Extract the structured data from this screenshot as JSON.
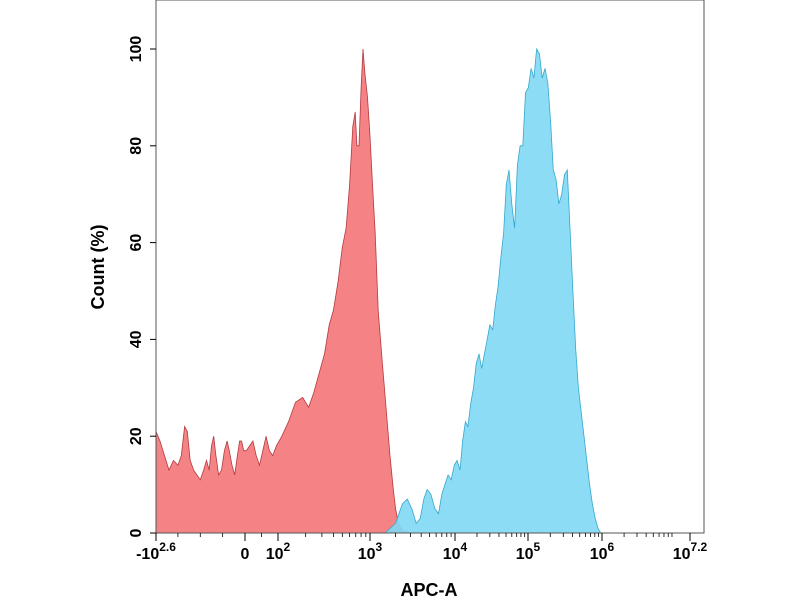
{
  "chart_data": {
    "type": "area",
    "title": "",
    "xlabel": "APC-A",
    "ylabel": "Count  (%)",
    "x_scale": "biexponential (log with linear region around 0)",
    "x_ticks": [
      {
        "value": -398,
        "base": "-10",
        "exp": "2.6"
      },
      {
        "value": 0,
        "base": "0",
        "exp": ""
      },
      {
        "value": 100,
        "base": "10",
        "exp": "2"
      },
      {
        "value": 1000,
        "base": "10",
        "exp": "3"
      },
      {
        "value": 10000,
        "base": "10",
        "exp": "4"
      },
      {
        "value": 100000,
        "base": "10",
        "exp": "5"
      },
      {
        "value": 1000000,
        "base": "10",
        "exp": "6"
      },
      {
        "value": 15848932,
        "base": "10",
        "exp": "7.2"
      }
    ],
    "y_ticks": [
      0,
      20,
      40,
      60,
      80,
      100
    ],
    "ylim": [
      0,
      110
    ],
    "grid": false,
    "legend": "none",
    "series": [
      {
        "color": "#f47478",
        "stroke": "#b23a3f",
        "points": [
          [
            -398,
            21
          ],
          [
            -380,
            19
          ],
          [
            -360,
            16
          ],
          [
            -340,
            13
          ],
          [
            -320,
            15
          ],
          [
            -300,
            14
          ],
          [
            -285,
            16
          ],
          [
            -270,
            22
          ],
          [
            -258,
            21
          ],
          [
            -245,
            15
          ],
          [
            -230,
            13
          ],
          [
            -215,
            12
          ],
          [
            -200,
            11
          ],
          [
            -185,
            13
          ],
          [
            -172,
            15
          ],
          [
            -160,
            13
          ],
          [
            -150,
            18
          ],
          [
            -140,
            20
          ],
          [
            -130,
            16
          ],
          [
            -118,
            12
          ],
          [
            -105,
            13
          ],
          [
            -92,
            17
          ],
          [
            -80,
            19
          ],
          [
            -70,
            17
          ],
          [
            -58,
            14
          ],
          [
            -46,
            12
          ],
          [
            -34,
            16
          ],
          [
            -24,
            19
          ],
          [
            -15,
            19
          ],
          [
            -6,
            17
          ],
          [
            4,
            17
          ],
          [
            14,
            18
          ],
          [
            24,
            19
          ],
          [
            34,
            16
          ],
          [
            44,
            14
          ],
          [
            54,
            17
          ],
          [
            64,
            20
          ],
          [
            74,
            17
          ],
          [
            84,
            16
          ],
          [
            95,
            18
          ],
          [
            110,
            20
          ],
          [
            130,
            23
          ],
          [
            155,
            27
          ],
          [
            185,
            28
          ],
          [
            215,
            26
          ],
          [
            245,
            29
          ],
          [
            280,
            33
          ],
          [
            320,
            37
          ],
          [
            360,
            43
          ],
          [
            400,
            46
          ],
          [
            450,
            52
          ],
          [
            500,
            59
          ],
          [
            550,
            63
          ],
          [
            600,
            72
          ],
          [
            650,
            84
          ],
          [
            690,
            87
          ],
          [
            720,
            80
          ],
          [
            760,
            80
          ],
          [
            800,
            92
          ],
          [
            840,
            100
          ],
          [
            880,
            95
          ],
          [
            940,
            90
          ],
          [
            1000,
            82
          ],
          [
            1070,
            72
          ],
          [
            1150,
            62
          ],
          [
            1250,
            46
          ],
          [
            1400,
            35
          ],
          [
            1560,
            25
          ],
          [
            1720,
            16
          ],
          [
            1880,
            9
          ],
          [
            2000,
            5
          ],
          [
            2150,
            2
          ],
          [
            2400,
            0.5
          ],
          [
            3000,
            0
          ]
        ]
      },
      {
        "color": "#7fd8f4",
        "stroke": "#36a8cc",
        "points": [
          [
            1500,
            0
          ],
          [
            2000,
            2
          ],
          [
            2400,
            6
          ],
          [
            2750,
            7
          ],
          [
            3100,
            5
          ],
          [
            3500,
            2
          ],
          [
            3900,
            3
          ],
          [
            4300,
            7
          ],
          [
            4700,
            9
          ],
          [
            5200,
            8
          ],
          [
            5800,
            5
          ],
          [
            6400,
            4
          ],
          [
            7000,
            8
          ],
          [
            7600,
            10
          ],
          [
            8300,
            12
          ],
          [
            9000,
            11
          ],
          [
            9800,
            14
          ],
          [
            10700,
            15
          ],
          [
            11700,
            13
          ],
          [
            12700,
            19
          ],
          [
            13900,
            23
          ],
          [
            15000,
            22
          ],
          [
            16500,
            27
          ],
          [
            17900,
            30
          ],
          [
            19500,
            35
          ],
          [
            21300,
            37
          ],
          [
            23200,
            34
          ],
          [
            25300,
            37
          ],
          [
            27600,
            40
          ],
          [
            30000,
            43
          ],
          [
            32800,
            42
          ],
          [
            35700,
            47
          ],
          [
            39000,
            51
          ],
          [
            42500,
            57
          ],
          [
            46300,
            62
          ],
          [
            50500,
            72
          ],
          [
            55000,
            75
          ],
          [
            60000,
            68
          ],
          [
            65500,
            63
          ],
          [
            71500,
            76
          ],
          [
            78000,
            80
          ],
          [
            85000,
            80
          ],
          [
            92500,
            91
          ],
          [
            100900,
            92
          ],
          [
            110000,
            96
          ],
          [
            120000,
            94
          ],
          [
            130800,
            100
          ],
          [
            142700,
            99
          ],
          [
            155600,
            94
          ],
          [
            169700,
            96
          ],
          [
            185000,
            93
          ],
          [
            201800,
            85
          ],
          [
            220000,
            75
          ],
          [
            240000,
            73
          ],
          [
            261800,
            68
          ],
          [
            285500,
            70
          ],
          [
            311400,
            74
          ],
          [
            339600,
            75
          ],
          [
            370000,
            63
          ],
          [
            404000,
            50
          ],
          [
            440500,
            38
          ],
          [
            480400,
            30
          ],
          [
            524000,
            25
          ],
          [
            571500,
            20
          ],
          [
            623000,
            15
          ],
          [
            679600,
            10
          ],
          [
            741200,
            6
          ],
          [
            808400,
            3
          ],
          [
            881700,
            1
          ],
          [
            961600,
            0
          ]
        ]
      }
    ]
  }
}
